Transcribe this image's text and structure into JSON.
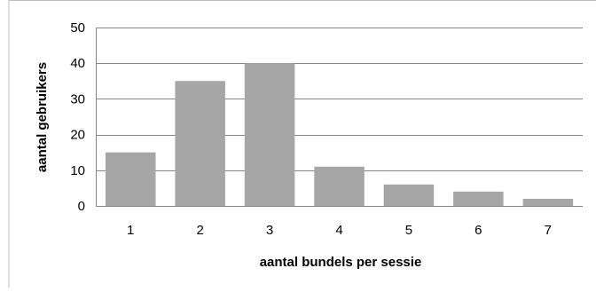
{
  "chart_data": {
    "type": "bar",
    "title": "",
    "xlabel": "aantal bundels per sessie",
    "ylabel": "aantal gebruikers",
    "categories": [
      "1",
      "2",
      "3",
      "4",
      "5",
      "6",
      "7"
    ],
    "values": [
      15,
      35,
      40,
      11,
      6,
      4,
      2
    ],
    "ylim": [
      0,
      50
    ],
    "yticks": [
      0,
      10,
      20,
      30,
      40,
      50
    ],
    "grid": true,
    "legend": "none",
    "colors": {
      "bar": "#a6a6a6",
      "grid": "#878787",
      "axis": "#878787",
      "frame": "#bfbfbf"
    }
  }
}
